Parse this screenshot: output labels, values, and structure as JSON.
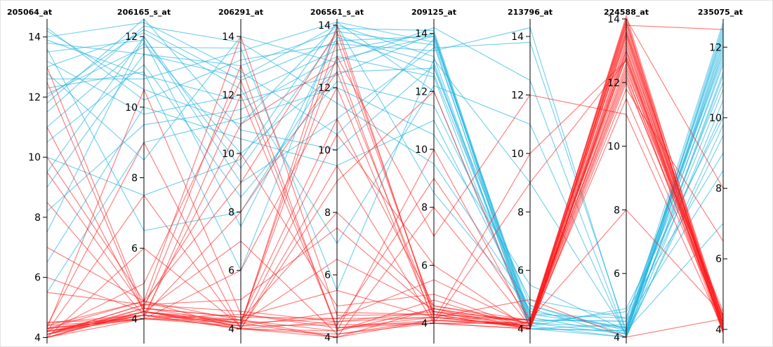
{
  "chart_data": {
    "type": "parallel-coordinates",
    "grid": false,
    "legend": "none",
    "colors": {
      "class_a": "#1fb4e0",
      "class_b": "#ff1a1a"
    },
    "axes": [
      {
        "name": "205064_at",
        "range": [
          3.8,
          14.6
        ],
        "ticks": [
          4,
          6,
          8,
          10,
          12,
          14
        ],
        "tick_side": "left"
      },
      {
        "name": "206165_s_at",
        "range": [
          3.3,
          12.5
        ],
        "ticks": [
          4,
          6,
          8,
          10,
          12
        ],
        "tick_side": "left"
      },
      {
        "name": "206291_at",
        "range": [
          3.5,
          14.6
        ],
        "ticks": [
          4,
          6,
          8,
          10,
          12,
          14
        ],
        "tick_side": "left"
      },
      {
        "name": "206561_s_at",
        "range": [
          3.8,
          14.2
        ],
        "ticks": [
          4,
          6,
          8,
          10,
          12,
          14
        ],
        "tick_side": "left"
      },
      {
        "name": "209125_at",
        "range": [
          3.3,
          14.5
        ],
        "ticks": [
          4,
          6,
          8,
          10,
          12,
          14
        ],
        "tick_side": "left"
      },
      {
        "name": "213796_at",
        "range": [
          3.5,
          14.6
        ],
        "ticks": [
          4,
          6,
          8,
          10,
          12,
          14
        ],
        "tick_side": "left"
      },
      {
        "name": "224588_at",
        "range": [
          3.8,
          14.0
        ],
        "ticks": [
          4,
          6,
          8,
          10,
          12,
          14
        ],
        "tick_side": "left"
      },
      {
        "name": "235075_at",
        "range": [
          3.6,
          12.8
        ],
        "ticks": [
          4,
          6,
          8,
          10,
          12
        ],
        "tick_side": "right"
      }
    ],
    "series": [
      {
        "class": "class_a",
        "values": [
          13.8,
          11.5,
          13.0,
          13.8,
          13.6,
          4.2,
          4.1,
          12.2
        ]
      },
      {
        "class": "class_a",
        "values": [
          12.0,
          12.2,
          12.5,
          13.5,
          13.9,
          4.5,
          4.3,
          11.5
        ]
      },
      {
        "class": "class_a",
        "values": [
          14.2,
          10.5,
          11.0,
          14.0,
          13.2,
          4.0,
          4.0,
          12.5
        ]
      },
      {
        "class": "class_a",
        "values": [
          11.0,
          11.8,
          10.0,
          12.5,
          12.8,
          4.8,
          4.2,
          10.8
        ]
      },
      {
        "class": "class_a",
        "values": [
          13.2,
          9.8,
          12.0,
          13.2,
          14.0,
          4.3,
          4.5,
          11.0
        ]
      },
      {
        "class": "class_a",
        "values": [
          9.5,
          12.0,
          9.0,
          11.0,
          13.5,
          13.8,
          4.2,
          12.0
        ]
      },
      {
        "class": "class_a",
        "values": [
          12.6,
          10.8,
          13.5,
          14.1,
          12.0,
          4.1,
          4.0,
          9.8
        ]
      },
      {
        "class": "class_a",
        "values": [
          10.5,
          11.2,
          8.5,
          12.2,
          11.5,
          5.0,
          4.6,
          11.8
        ]
      },
      {
        "class": "class_a",
        "values": [
          14.0,
          12.4,
          12.8,
          10.5,
          13.8,
          4.4,
          4.1,
          12.6
        ]
      },
      {
        "class": "class_a",
        "values": [
          8.2,
          9.5,
          11.5,
          13.0,
          12.5,
          4.0,
          4.4,
          10.2
        ]
      },
      {
        "class": "class_a",
        "values": [
          12.8,
          8.5,
          14.0,
          12.8,
          14.2,
          12.5,
          4.0,
          11.2
        ]
      },
      {
        "class": "class_a",
        "values": [
          6.5,
          10.0,
          10.5,
          9.5,
          11.0,
          4.6,
          4.3,
          12.3
        ]
      },
      {
        "class": "class_a",
        "values": [
          13.5,
          11.9,
          7.5,
          13.6,
          13.0,
          4.2,
          4.8,
          9.0
        ]
      },
      {
        "class": "class_a",
        "values": [
          11.5,
          12.3,
          13.8,
          11.5,
          9.5,
          4.8,
          4.1,
          11.9
        ]
      },
      {
        "class": "class_a",
        "values": [
          10.0,
          7.5,
          9.8,
          14.1,
          13.7,
          4.0,
          4.2,
          12.4
        ]
      },
      {
        "class": "class_a",
        "values": [
          13.0,
          12.1,
          12.2,
          7.0,
          12.2,
          11.0,
          4.0,
          10.5
        ]
      },
      {
        "class": "class_a",
        "values": [
          12.3,
          11.0,
          6.0,
          13.9,
          14.1,
          4.3,
          4.5,
          8.5
        ]
      },
      {
        "class": "class_a",
        "values": [
          5.5,
          9.0,
          11.2,
          12.0,
          10.5,
          5.5,
          4.2,
          11.6
        ]
      },
      {
        "class": "class_a",
        "values": [
          14.3,
          10.2,
          13.2,
          13.4,
          13.4,
          14.3,
          4.1,
          12.1
        ]
      },
      {
        "class": "class_a",
        "values": [
          11.8,
          12.5,
          10.8,
          10.0,
          12.9,
          4.1,
          4.9,
          10.0
        ]
      },
      {
        "class": "class_a",
        "values": [
          9.0,
          11.5,
          12.6,
          14.0,
          8.5,
          4.7,
          4.0,
          11.3
        ]
      },
      {
        "class": "class_a",
        "values": [
          13.6,
          6.5,
          8.0,
          12.9,
          13.9,
          4.2,
          4.3,
          12.7
        ]
      },
      {
        "class": "class_a",
        "values": [
          12.1,
          11.7,
          13.6,
          5.5,
          13.1,
          9.0,
          4.1,
          9.5
        ]
      },
      {
        "class": "class_a",
        "values": [
          7.5,
          12.0,
          9.5,
          13.7,
          12.6,
          4.5,
          4.6,
          11.7
        ]
      },
      {
        "class": "class_a",
        "values": [
          13.9,
          10.9,
          11.8,
          12.4,
          14.0,
          4.0,
          4.2,
          7.0
        ]
      },
      {
        "class": "class_b",
        "values": [
          4.2,
          4.1,
          4.0,
          4.5,
          4.2,
          4.1,
          13.5,
          4.1
        ]
      },
      {
        "class": "class_b",
        "values": [
          4.1,
          4.3,
          4.2,
          4.0,
          4.5,
          4.0,
          13.8,
          4.0
        ]
      },
      {
        "class": "class_b",
        "values": [
          4.3,
          4.0,
          4.5,
          4.3,
          4.0,
          4.2,
          12.8,
          4.2
        ]
      },
      {
        "class": "class_b",
        "values": [
          4.0,
          4.2,
          4.1,
          4.8,
          4.3,
          4.3,
          14.0,
          3.9
        ]
      },
      {
        "class": "class_b",
        "values": [
          4.4,
          4.5,
          4.3,
          4.2,
          4.8,
          4.0,
          13.2,
          4.3
        ]
      },
      {
        "class": "class_b",
        "values": [
          4.2,
          4.0,
          6.0,
          12.0,
          4.1,
          4.1,
          12.5,
          4.0
        ]
      },
      {
        "class": "class_b",
        "values": [
          12.5,
          4.2,
          4.0,
          4.1,
          4.0,
          4.2,
          13.7,
          4.1
        ]
      },
      {
        "class": "class_b",
        "values": [
          4.1,
          4.4,
          10.0,
          5.0,
          5.0,
          4.0,
          12.0,
          4.4
        ]
      },
      {
        "class": "class_b",
        "values": [
          4.3,
          4.1,
          4.2,
          13.5,
          4.4,
          4.3,
          13.9,
          3.9
        ]
      },
      {
        "class": "class_b",
        "values": [
          9.5,
          4.3,
          4.4,
          4.6,
          4.2,
          4.1,
          11.5,
          4.2
        ]
      },
      {
        "class": "class_b",
        "values": [
          4.0,
          6.0,
          4.1,
          10.5,
          6.0,
          4.0,
          13.0,
          4.0
        ]
      },
      {
        "class": "class_b",
        "values": [
          4.5,
          4.0,
          12.0,
          4.3,
          4.1,
          10.0,
          12.7,
          4.3
        ]
      },
      {
        "class": "class_b",
        "values": [
          4.2,
          4.2,
          4.3,
          8.0,
          4.6,
          4.2,
          14.1,
          4.1
        ]
      },
      {
        "class": "class_b",
        "values": [
          7.0,
          4.5,
          4.0,
          4.0,
          8.0,
          4.1,
          12.2,
          4.5
        ]
      },
      {
        "class": "class_b",
        "values": [
          4.1,
          4.1,
          8.0,
          12.5,
          4.3,
          4.3,
          13.4,
          4.0
        ]
      },
      {
        "class": "class_b",
        "values": [
          4.3,
          10.5,
          4.5,
          4.4,
          4.0,
          4.0,
          11.8,
          6.5
        ]
      },
      {
        "class": "class_b",
        "values": [
          11.0,
          4.2,
          4.2,
          6.5,
          4.5,
          4.2,
          13.6,
          4.2
        ]
      },
      {
        "class": "class_b",
        "values": [
          4.0,
          4.3,
          13.0,
          4.2,
          10.0,
          4.1,
          12.9,
          3.9
        ]
      },
      {
        "class": "class_b",
        "values": [
          4.4,
          4.0,
          4.1,
          14.0,
          4.2,
          5.0,
          4.0,
          4.3
        ]
      },
      {
        "class": "class_b",
        "values": [
          5.5,
          4.4,
          4.6,
          4.5,
          4.4,
          4.0,
          13.3,
          4.0
        ]
      },
      {
        "class": "class_b",
        "values": [
          4.2,
          7.5,
          4.0,
          9.0,
          12.0,
          4.2,
          12.4,
          4.4
        ]
      },
      {
        "class": "class_b",
        "values": [
          4.1,
          4.2,
          7.0,
          4.1,
          4.1,
          4.1,
          13.8,
          12.5
        ]
      },
      {
        "class": "class_b",
        "values": [
          8.5,
          4.1,
          4.3,
          11.0,
          4.6,
          4.3,
          12.6,
          4.1
        ]
      },
      {
        "class": "class_b",
        "values": [
          4.3,
          4.5,
          14.0,
          4.7,
          4.3,
          4.0,
          13.1,
          4.2
        ]
      },
      {
        "class": "class_b",
        "values": [
          4.0,
          4.0,
          4.2,
          13.0,
          7.0,
          12.0,
          11.0,
          4.0
        ]
      },
      {
        "class": "class_b",
        "values": [
          13.0,
          4.3,
          4.4,
          5.5,
          4.2,
          4.1,
          13.9,
          4.3
        ]
      },
      {
        "class": "class_b",
        "values": [
          4.4,
          9.0,
          4.0,
          4.2,
          4.5,
          4.2,
          12.3,
          3.9
        ]
      },
      {
        "class": "class_b",
        "values": [
          4.2,
          4.1,
          11.0,
          12.8,
          4.0,
          4.0,
          13.5,
          4.1
        ]
      },
      {
        "class": "class_b",
        "values": [
          6.0,
          4.2,
          4.1,
          4.4,
          9.0,
          4.3,
          8.0,
          4.4
        ]
      },
      {
        "class": "class_b",
        "values": [
          4.1,
          4.4,
          5.0,
          7.5,
          4.4,
          4.1,
          12.8,
          4.0
        ]
      },
      {
        "class": "class_b",
        "values": [
          4.3,
          4.0,
          4.3,
          4.0,
          4.1,
          4.2,
          14.0,
          8.0
        ]
      },
      {
        "class": "class_b",
        "values": [
          10.0,
          4.5,
          9.0,
          13.8,
          4.3,
          4.0,
          13.0,
          4.2
        ]
      },
      {
        "class": "class_b",
        "values": [
          4.0,
          4.2,
          4.2,
          4.6,
          5.5,
          4.1,
          12.1,
          4.1
        ]
      },
      {
        "class": "class_b",
        "values": [
          4.2,
          5.0,
          12.5,
          4.3,
          4.2,
          4.3,
          13.6,
          4.3
        ]
      },
      {
        "class": "class_b",
        "values": [
          4.5,
          4.1,
          4.0,
          9.5,
          4.0,
          9.0,
          12.7,
          4.0
        ]
      }
    ]
  }
}
